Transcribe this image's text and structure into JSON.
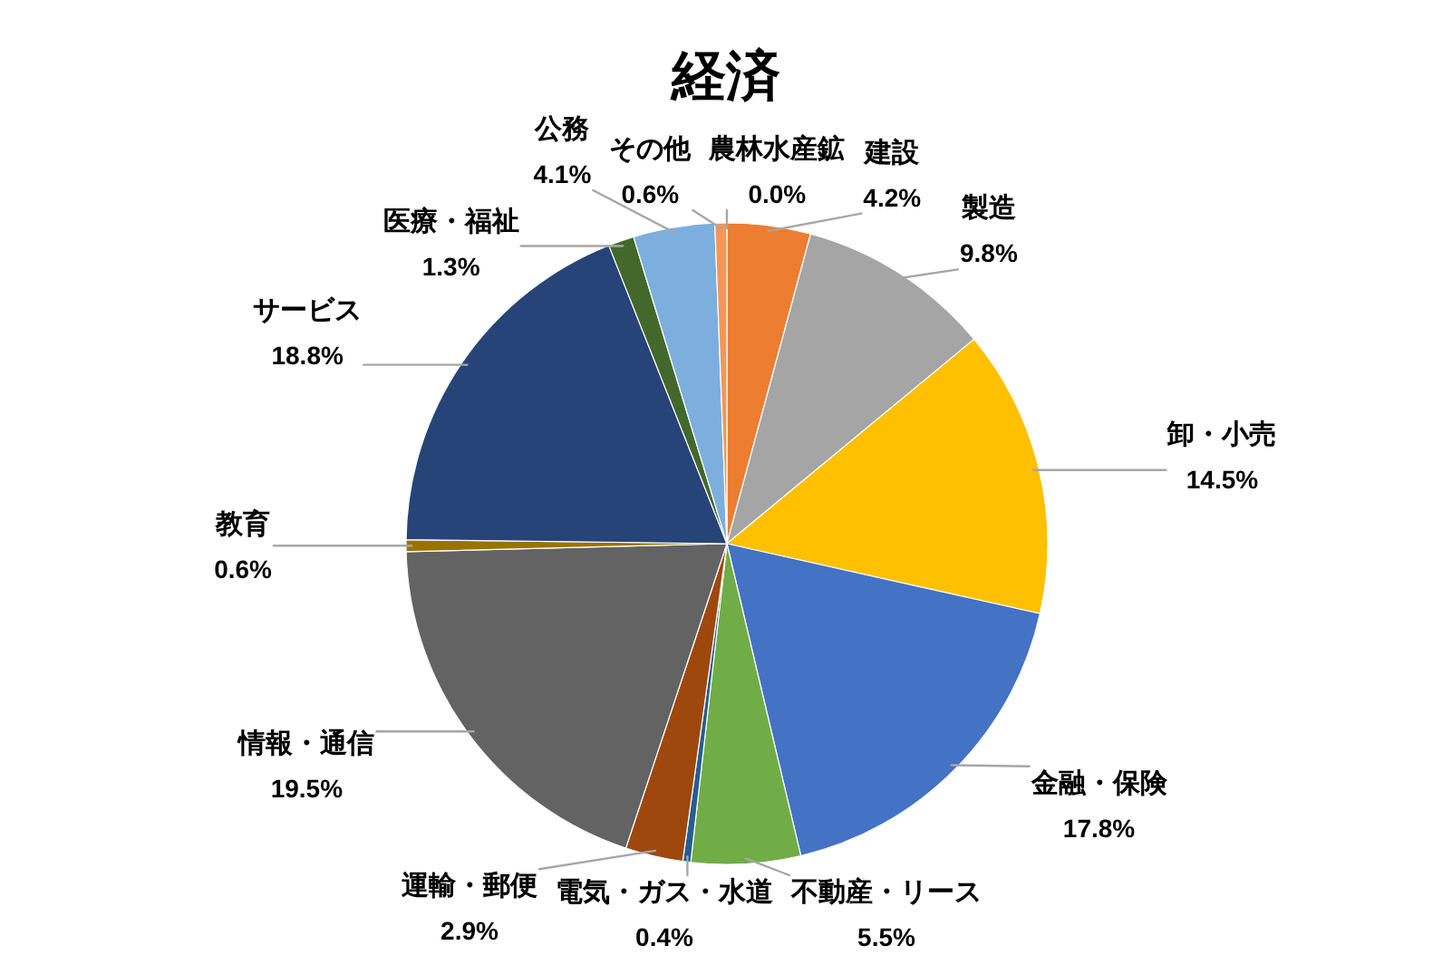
{
  "chart_data": {
    "type": "pie",
    "title": "経済",
    "categories": [
      "農林水産鉱",
      "建設",
      "製造",
      "卸・小売",
      "金融・保険",
      "不動産・リース",
      "電気・ガス・水道",
      "運輸・郵便",
      "情報・通信",
      "教育",
      "サービス",
      "医療・福祉",
      "公務",
      "その他"
    ],
    "values": [
      0.0,
      4.2,
      9.8,
      14.5,
      17.8,
      5.5,
      0.4,
      2.9,
      19.5,
      0.6,
      18.8,
      1.3,
      4.1,
      0.6
    ],
    "value_labels": [
      "0.0%",
      "4.2%",
      "9.8%",
      "14.5%",
      "17.8%",
      "5.5%",
      "0.4%",
      "2.9%",
      "19.5%",
      "0.6%",
      "18.8%",
      "1.3%",
      "4.1%",
      "0.6%"
    ],
    "colors": [
      null,
      "#ed7d31",
      "#a5a5a5",
      "#ffc000",
      "#4472c4",
      "#70ad47",
      "#255e91",
      "#9e480e",
      "#636363",
      "#997300",
      "#264478",
      "#43682b",
      "#7cafdd",
      "#f1975a"
    ]
  }
}
